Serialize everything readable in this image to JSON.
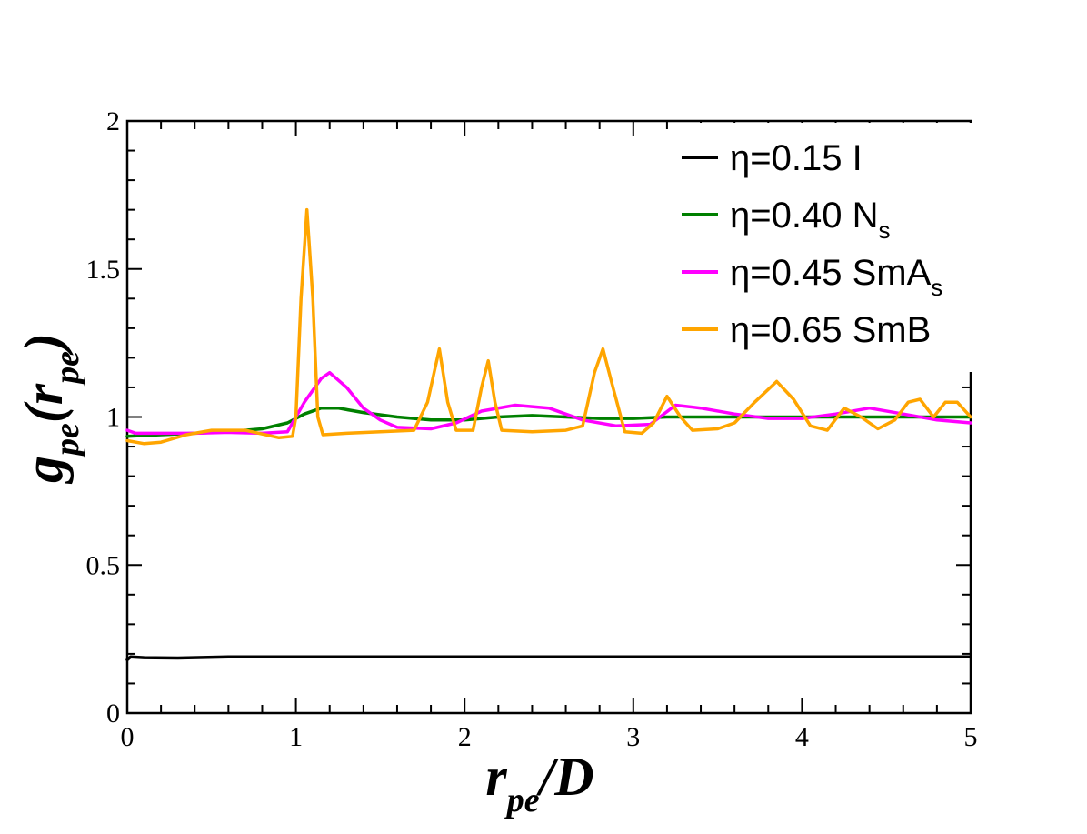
{
  "chart_data": {
    "type": "line",
    "title": "",
    "xlabel": {
      "main": "r",
      "sub": "pe",
      "suffix": "/D"
    },
    "ylabel": {
      "main": "g",
      "sub": "pe",
      "open": "(",
      "arg": "r",
      "arg_sub": "pe",
      "close": ")"
    },
    "xlim": [
      0,
      5
    ],
    "ylim": [
      0,
      2
    ],
    "x_ticks": [
      0,
      1,
      2,
      3,
      4,
      5
    ],
    "x_tick_labels": [
      "0",
      "1",
      "2",
      "3",
      "4",
      "5"
    ],
    "y_ticks": [
      0,
      0.5,
      1,
      1.5,
      2
    ],
    "y_tick_labels": [
      "0",
      "0.5",
      "1",
      "1.5",
      "2"
    ],
    "grid": false,
    "legend_position": "top-right",
    "series": [
      {
        "name": "η=0.15 I",
        "label_main": "η=0.15 I",
        "label_sub": "",
        "color": "#000000",
        "points": [
          [
            0,
            0.18
          ],
          [
            0.02,
            0.19
          ],
          [
            0.1,
            0.187
          ],
          [
            0.3,
            0.186
          ],
          [
            0.6,
            0.19
          ],
          [
            1.0,
            0.19
          ],
          [
            1.5,
            0.19
          ],
          [
            2,
            0.19
          ],
          [
            2.5,
            0.19
          ],
          [
            3,
            0.19
          ],
          [
            3.5,
            0.19
          ],
          [
            4,
            0.19
          ],
          [
            4.5,
            0.19
          ],
          [
            5,
            0.19
          ]
        ]
      },
      {
        "name": "η=0.40 Ns",
        "label_main": "η=0.40 N",
        "label_sub": "s",
        "color": "#008000",
        "points": [
          [
            0,
            0.935
          ],
          [
            0.2,
            0.94
          ],
          [
            0.4,
            0.945
          ],
          [
            0.6,
            0.95
          ],
          [
            0.8,
            0.96
          ],
          [
            0.95,
            0.98
          ],
          [
            1.05,
            1.01
          ],
          [
            1.15,
            1.03
          ],
          [
            1.25,
            1.03
          ],
          [
            1.4,
            1.015
          ],
          [
            1.6,
            1.0
          ],
          [
            1.8,
            0.99
          ],
          [
            2.0,
            0.99
          ],
          [
            2.2,
            1.0
          ],
          [
            2.4,
            1.005
          ],
          [
            2.6,
            1.0
          ],
          [
            2.8,
            0.995
          ],
          [
            3.0,
            0.995
          ],
          [
            3.2,
            1.0
          ],
          [
            3.5,
            1.0
          ],
          [
            4.0,
            1.0
          ],
          [
            4.5,
            1.0
          ],
          [
            5.0,
            1.0
          ]
        ]
      },
      {
        "name": "η=0.45 SmAs",
        "label_main": "η=0.45 SmA",
        "label_sub": "s",
        "color": "#ff00ff",
        "points": [
          [
            0,
            0.955
          ],
          [
            0.05,
            0.945
          ],
          [
            0.2,
            0.945
          ],
          [
            0.4,
            0.945
          ],
          [
            0.6,
            0.948
          ],
          [
            0.8,
            0.945
          ],
          [
            0.95,
            0.95
          ],
          [
            1.05,
            1.05
          ],
          [
            1.15,
            1.13
          ],
          [
            1.2,
            1.15
          ],
          [
            1.3,
            1.1
          ],
          [
            1.4,
            1.03
          ],
          [
            1.5,
            0.99
          ],
          [
            1.6,
            0.965
          ],
          [
            1.8,
            0.96
          ],
          [
            1.95,
            0.98
          ],
          [
            2.1,
            1.02
          ],
          [
            2.3,
            1.04
          ],
          [
            2.5,
            1.03
          ],
          [
            2.7,
            0.99
          ],
          [
            2.9,
            0.97
          ],
          [
            3.1,
            0.975
          ],
          [
            3.25,
            1.04
          ],
          [
            3.4,
            1.03
          ],
          [
            3.6,
            1.01
          ],
          [
            3.8,
            0.995
          ],
          [
            4.0,
            0.995
          ],
          [
            4.2,
            1.01
          ],
          [
            4.4,
            1.03
          ],
          [
            4.6,
            1.01
          ],
          [
            4.8,
            0.99
          ],
          [
            5.0,
            0.98
          ]
        ]
      },
      {
        "name": "η=0.65 SmB",
        "label_main": "η=0.65 SmB",
        "label_sub": "",
        "color": "#ffa500",
        "points": [
          [
            0,
            0.92
          ],
          [
            0.1,
            0.91
          ],
          [
            0.2,
            0.915
          ],
          [
            0.35,
            0.94
          ],
          [
            0.5,
            0.955
          ],
          [
            0.7,
            0.955
          ],
          [
            0.9,
            0.93
          ],
          [
            0.98,
            0.935
          ],
          [
            1.0,
            1.0
          ],
          [
            1.03,
            1.4
          ],
          [
            1.065,
            1.7
          ],
          [
            1.1,
            1.4
          ],
          [
            1.13,
            1.0
          ],
          [
            1.16,
            0.94
          ],
          [
            1.3,
            0.945
          ],
          [
            1.5,
            0.95
          ],
          [
            1.7,
            0.955
          ],
          [
            1.78,
            1.05
          ],
          [
            1.85,
            1.23
          ],
          [
            1.9,
            1.05
          ],
          [
            1.95,
            0.955
          ],
          [
            2.05,
            0.955
          ],
          [
            2.1,
            1.1
          ],
          [
            2.14,
            1.19
          ],
          [
            2.18,
            1.05
          ],
          [
            2.22,
            0.955
          ],
          [
            2.4,
            0.95
          ],
          [
            2.6,
            0.955
          ],
          [
            2.7,
            0.97
          ],
          [
            2.77,
            1.15
          ],
          [
            2.82,
            1.23
          ],
          [
            2.87,
            1.12
          ],
          [
            2.95,
            0.95
          ],
          [
            3.05,
            0.945
          ],
          [
            3.12,
            0.98
          ],
          [
            3.2,
            1.07
          ],
          [
            3.28,
            1.0
          ],
          [
            3.35,
            0.955
          ],
          [
            3.5,
            0.96
          ],
          [
            3.6,
            0.98
          ],
          [
            3.72,
            1.05
          ],
          [
            3.85,
            1.12
          ],
          [
            3.95,
            1.06
          ],
          [
            4.05,
            0.97
          ],
          [
            4.15,
            0.955
          ],
          [
            4.25,
            1.03
          ],
          [
            4.35,
            1.0
          ],
          [
            4.45,
            0.96
          ],
          [
            4.55,
            0.99
          ],
          [
            4.63,
            1.05
          ],
          [
            4.7,
            1.06
          ],
          [
            4.78,
            1.0
          ],
          [
            4.85,
            1.05
          ],
          [
            4.92,
            1.05
          ],
          [
            5.0,
            1.0
          ]
        ]
      }
    ]
  }
}
